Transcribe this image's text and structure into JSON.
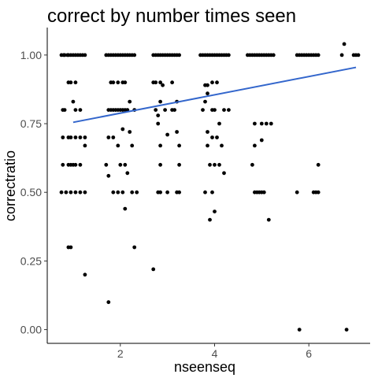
{
  "chart_data": {
    "type": "scatter",
    "title": "correct by number times seen",
    "xlabel": "nseenseq",
    "ylabel": "correctratio",
    "xlim": [
      0.45,
      7.3
    ],
    "ylim": [
      -0.05,
      1.1
    ],
    "x_ticks": [
      2,
      4,
      6
    ],
    "x_tick_labels": [
      "2",
      "4",
      "6"
    ],
    "y_ticks": [
      0,
      0.25,
      0.5,
      0.75,
      1.0
    ],
    "y_tick_labels": [
      "0.00",
      "0.25",
      "0.50",
      "0.75",
      "1.00"
    ],
    "grid": false,
    "point_color": "#000000",
    "trend_color": "#3366cc",
    "trend_line": {
      "x": [
        1.0,
        7.0
      ],
      "y": [
        0.755,
        0.955
      ]
    },
    "points": [
      {
        "x": 0.75,
        "y": 1.0
      },
      {
        "x": 0.8,
        "y": 1.0
      },
      {
        "x": 0.82,
        "y": 1.0
      },
      {
        "x": 0.88,
        "y": 1.0
      },
      {
        "x": 0.9,
        "y": 1.0
      },
      {
        "x": 0.95,
        "y": 1.0
      },
      {
        "x": 1.0,
        "y": 1.0
      },
      {
        "x": 1.05,
        "y": 1.0
      },
      {
        "x": 1.1,
        "y": 1.0
      },
      {
        "x": 1.15,
        "y": 1.0
      },
      {
        "x": 1.2,
        "y": 1.0
      },
      {
        "x": 1.25,
        "y": 1.0
      },
      {
        "x": 1.7,
        "y": 1.0
      },
      {
        "x": 1.75,
        "y": 1.0
      },
      {
        "x": 1.8,
        "y": 1.0
      },
      {
        "x": 1.85,
        "y": 1.0
      },
      {
        "x": 1.9,
        "y": 1.0
      },
      {
        "x": 1.95,
        "y": 1.0
      },
      {
        "x": 2.0,
        "y": 1.0
      },
      {
        "x": 2.05,
        "y": 1.0
      },
      {
        "x": 2.1,
        "y": 1.0
      },
      {
        "x": 2.15,
        "y": 1.0
      },
      {
        "x": 2.2,
        "y": 1.0
      },
      {
        "x": 2.25,
        "y": 1.0
      },
      {
        "x": 2.3,
        "y": 1.0
      },
      {
        "x": 2.7,
        "y": 1.0
      },
      {
        "x": 2.75,
        "y": 1.0
      },
      {
        "x": 2.8,
        "y": 1.0
      },
      {
        "x": 2.85,
        "y": 1.0
      },
      {
        "x": 2.9,
        "y": 1.0
      },
      {
        "x": 2.95,
        "y": 1.0
      },
      {
        "x": 3.0,
        "y": 1.0
      },
      {
        "x": 3.05,
        "y": 1.0
      },
      {
        "x": 3.1,
        "y": 1.0
      },
      {
        "x": 3.15,
        "y": 1.0
      },
      {
        "x": 3.2,
        "y": 1.0
      },
      {
        "x": 3.25,
        "y": 1.0
      },
      {
        "x": 3.7,
        "y": 1.0
      },
      {
        "x": 3.75,
        "y": 1.0
      },
      {
        "x": 3.8,
        "y": 1.0
      },
      {
        "x": 3.85,
        "y": 1.0
      },
      {
        "x": 3.9,
        "y": 1.0
      },
      {
        "x": 3.95,
        "y": 1.0
      },
      {
        "x": 4.0,
        "y": 1.0
      },
      {
        "x": 4.05,
        "y": 1.0
      },
      {
        "x": 4.1,
        "y": 1.0
      },
      {
        "x": 4.15,
        "y": 1.0
      },
      {
        "x": 4.2,
        "y": 1.0
      },
      {
        "x": 4.25,
        "y": 1.0
      },
      {
        "x": 4.3,
        "y": 1.0
      },
      {
        "x": 4.7,
        "y": 1.0
      },
      {
        "x": 4.75,
        "y": 1.0
      },
      {
        "x": 4.8,
        "y": 1.0
      },
      {
        "x": 4.85,
        "y": 1.0
      },
      {
        "x": 4.9,
        "y": 1.0
      },
      {
        "x": 4.95,
        "y": 1.0
      },
      {
        "x": 5.0,
        "y": 1.0
      },
      {
        "x": 5.05,
        "y": 1.0
      },
      {
        "x": 5.1,
        "y": 1.0
      },
      {
        "x": 5.15,
        "y": 1.0
      },
      {
        "x": 5.2,
        "y": 1.0
      },
      {
        "x": 5.25,
        "y": 1.0
      },
      {
        "x": 5.75,
        "y": 1.0
      },
      {
        "x": 5.8,
        "y": 1.0
      },
      {
        "x": 5.85,
        "y": 1.0
      },
      {
        "x": 5.9,
        "y": 1.0
      },
      {
        "x": 5.95,
        "y": 1.0
      },
      {
        "x": 6.0,
        "y": 1.0
      },
      {
        "x": 6.05,
        "y": 1.0
      },
      {
        "x": 6.1,
        "y": 1.0
      },
      {
        "x": 6.15,
        "y": 1.0
      },
      {
        "x": 6.2,
        "y": 1.0
      },
      {
        "x": 6.7,
        "y": 1.0
      },
      {
        "x": 6.75,
        "y": 1.04
      },
      {
        "x": 6.95,
        "y": 1.0
      },
      {
        "x": 7.0,
        "y": 1.0
      },
      {
        "x": 7.05,
        "y": 1.0
      },
      {
        "x": 0.9,
        "y": 0.9
      },
      {
        "x": 0.95,
        "y": 0.9
      },
      {
        "x": 1.05,
        "y": 0.9
      },
      {
        "x": 1.8,
        "y": 0.9
      },
      {
        "x": 1.85,
        "y": 0.9
      },
      {
        "x": 1.95,
        "y": 0.9
      },
      {
        "x": 2.05,
        "y": 0.9
      },
      {
        "x": 2.1,
        "y": 0.9
      },
      {
        "x": 2.7,
        "y": 0.9
      },
      {
        "x": 2.75,
        "y": 0.9
      },
      {
        "x": 2.85,
        "y": 0.9
      },
      {
        "x": 2.9,
        "y": 0.89
      },
      {
        "x": 3.1,
        "y": 0.9
      },
      {
        "x": 3.8,
        "y": 0.89
      },
      {
        "x": 3.85,
        "y": 0.89
      },
      {
        "x": 3.95,
        "y": 0.9
      },
      {
        "x": 4.05,
        "y": 0.9
      },
      {
        "x": 0.78,
        "y": 0.8
      },
      {
        "x": 0.82,
        "y": 0.8
      },
      {
        "x": 1.0,
        "y": 0.83
      },
      {
        "x": 1.05,
        "y": 0.8
      },
      {
        "x": 1.15,
        "y": 0.8
      },
      {
        "x": 1.75,
        "y": 0.8
      },
      {
        "x": 1.8,
        "y": 0.8
      },
      {
        "x": 1.85,
        "y": 0.8
      },
      {
        "x": 1.9,
        "y": 0.8
      },
      {
        "x": 1.95,
        "y": 0.8
      },
      {
        "x": 2.0,
        "y": 0.8
      },
      {
        "x": 2.05,
        "y": 0.8
      },
      {
        "x": 2.1,
        "y": 0.8
      },
      {
        "x": 2.15,
        "y": 0.8
      },
      {
        "x": 2.2,
        "y": 0.83
      },
      {
        "x": 2.3,
        "y": 0.8
      },
      {
        "x": 2.75,
        "y": 0.8
      },
      {
        "x": 2.8,
        "y": 0.78
      },
      {
        "x": 2.85,
        "y": 0.83
      },
      {
        "x": 2.95,
        "y": 0.8
      },
      {
        "x": 3.1,
        "y": 0.8
      },
      {
        "x": 3.15,
        "y": 0.8
      },
      {
        "x": 3.2,
        "y": 0.83
      },
      {
        "x": 3.75,
        "y": 0.8
      },
      {
        "x": 3.8,
        "y": 0.83
      },
      {
        "x": 3.85,
        "y": 0.86
      },
      {
        "x": 3.95,
        "y": 0.8
      },
      {
        "x": 4.0,
        "y": 0.8
      },
      {
        "x": 4.1,
        "y": 0.75
      },
      {
        "x": 4.2,
        "y": 0.8
      },
      {
        "x": 4.3,
        "y": 0.8
      },
      {
        "x": 0.78,
        "y": 0.7
      },
      {
        "x": 0.9,
        "y": 0.7
      },
      {
        "x": 0.95,
        "y": 0.7
      },
      {
        "x": 1.05,
        "y": 0.7
      },
      {
        "x": 1.15,
        "y": 0.7
      },
      {
        "x": 1.25,
        "y": 0.7
      },
      {
        "x": 1.75,
        "y": 0.7
      },
      {
        "x": 1.85,
        "y": 0.7
      },
      {
        "x": 2.05,
        "y": 0.73
      },
      {
        "x": 2.2,
        "y": 0.72
      },
      {
        "x": 2.8,
        "y": 0.75
      },
      {
        "x": 3.0,
        "y": 0.71
      },
      {
        "x": 3.2,
        "y": 0.72
      },
      {
        "x": 3.85,
        "y": 0.72
      },
      {
        "x": 3.95,
        "y": 0.7
      },
      {
        "x": 4.05,
        "y": 0.7
      },
      {
        "x": 4.85,
        "y": 0.75
      },
      {
        "x": 5.0,
        "y": 0.75
      },
      {
        "x": 5.1,
        "y": 0.75
      },
      {
        "x": 5.2,
        "y": 0.75
      },
      {
        "x": 1.25,
        "y": 0.67
      },
      {
        "x": 1.95,
        "y": 0.67
      },
      {
        "x": 2.25,
        "y": 0.67
      },
      {
        "x": 2.85,
        "y": 0.67
      },
      {
        "x": 3.25,
        "y": 0.67
      },
      {
        "x": 3.85,
        "y": 0.67
      },
      {
        "x": 4.15,
        "y": 0.67
      },
      {
        "x": 4.85,
        "y": 0.67
      },
      {
        "x": 5.0,
        "y": 0.69
      },
      {
        "x": 0.78,
        "y": 0.6
      },
      {
        "x": 0.9,
        "y": 0.6
      },
      {
        "x": 0.95,
        "y": 0.6
      },
      {
        "x": 1.0,
        "y": 0.6
      },
      {
        "x": 1.05,
        "y": 0.6
      },
      {
        "x": 1.15,
        "y": 0.6
      },
      {
        "x": 1.7,
        "y": 0.6
      },
      {
        "x": 2.0,
        "y": 0.6
      },
      {
        "x": 2.1,
        "y": 0.6
      },
      {
        "x": 2.85,
        "y": 0.6
      },
      {
        "x": 3.25,
        "y": 0.6
      },
      {
        "x": 3.9,
        "y": 0.6
      },
      {
        "x": 4.0,
        "y": 0.6
      },
      {
        "x": 4.1,
        "y": 0.6
      },
      {
        "x": 4.2,
        "y": 0.57
      },
      {
        "x": 4.8,
        "y": 0.6
      },
      {
        "x": 6.2,
        "y": 0.6
      },
      {
        "x": 1.75,
        "y": 0.56
      },
      {
        "x": 2.15,
        "y": 0.57
      },
      {
        "x": 0.75,
        "y": 0.5
      },
      {
        "x": 0.85,
        "y": 0.5
      },
      {
        "x": 0.95,
        "y": 0.5
      },
      {
        "x": 1.05,
        "y": 0.5
      },
      {
        "x": 1.15,
        "y": 0.5
      },
      {
        "x": 1.25,
        "y": 0.5
      },
      {
        "x": 1.85,
        "y": 0.5
      },
      {
        "x": 1.95,
        "y": 0.5
      },
      {
        "x": 2.05,
        "y": 0.5
      },
      {
        "x": 2.25,
        "y": 0.5
      },
      {
        "x": 2.35,
        "y": 0.5
      },
      {
        "x": 2.8,
        "y": 0.5
      },
      {
        "x": 2.85,
        "y": 0.5
      },
      {
        "x": 3.0,
        "y": 0.5
      },
      {
        "x": 3.2,
        "y": 0.5
      },
      {
        "x": 3.25,
        "y": 0.5
      },
      {
        "x": 3.8,
        "y": 0.5
      },
      {
        "x": 3.95,
        "y": 0.5
      },
      {
        "x": 4.85,
        "y": 0.5
      },
      {
        "x": 4.9,
        "y": 0.5
      },
      {
        "x": 4.95,
        "y": 0.5
      },
      {
        "x": 5.0,
        "y": 0.5
      },
      {
        "x": 5.05,
        "y": 0.5
      },
      {
        "x": 5.75,
        "y": 0.5
      },
      {
        "x": 6.1,
        "y": 0.5
      },
      {
        "x": 6.15,
        "y": 0.5
      },
      {
        "x": 6.2,
        "y": 0.5
      },
      {
        "x": 2.1,
        "y": 0.44
      },
      {
        "x": 4.0,
        "y": 0.43
      },
      {
        "x": 3.9,
        "y": 0.4
      },
      {
        "x": 5.15,
        "y": 0.4
      },
      {
        "x": 0.9,
        "y": 0.3
      },
      {
        "x": 0.95,
        "y": 0.3
      },
      {
        "x": 2.3,
        "y": 0.3
      },
      {
        "x": 2.7,
        "y": 0.22
      },
      {
        "x": 1.25,
        "y": 0.2
      },
      {
        "x": 1.75,
        "y": 0.1
      },
      {
        "x": 5.8,
        "y": 0.0
      },
      {
        "x": 6.8,
        "y": 0.0
      }
    ]
  }
}
